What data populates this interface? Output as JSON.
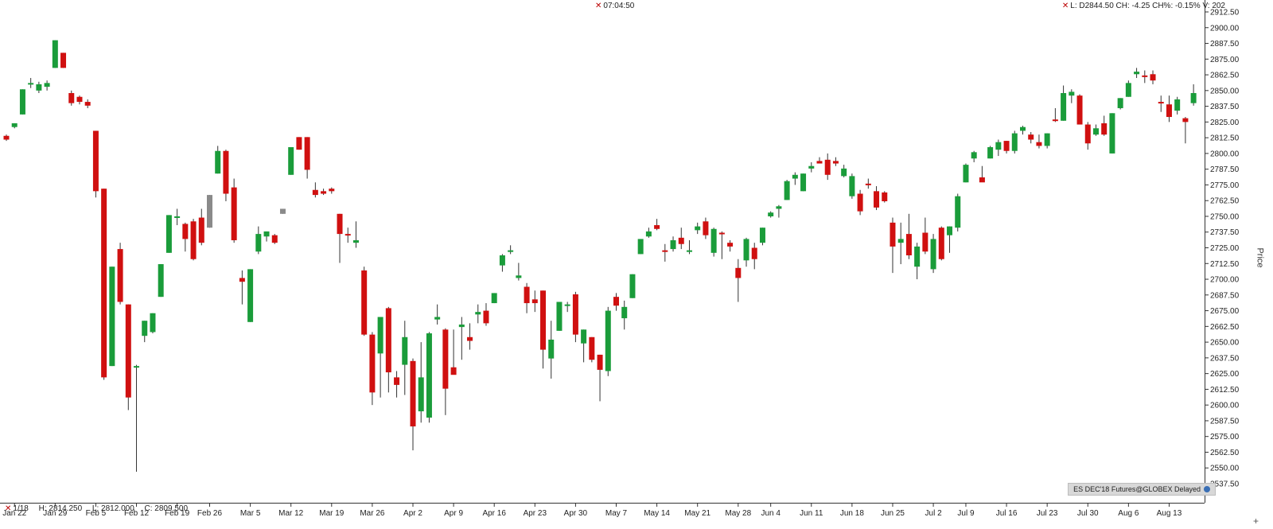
{
  "header": {
    "time": "07:04:50",
    "quote": "L: D2844.50 CH: -4.25 CH%: -0.15% V: 202"
  },
  "footer": {
    "date": "1/18",
    "high": "H: 2814.250",
    "low": "L: 2812.000",
    "close": "C: 2809.500"
  },
  "symbol_badge": "ES DEC'18 Futures@GLOBEX Delayed",
  "colors": {
    "up": "#1a9c3a",
    "down": "#d01010",
    "neutral": "#8a8a8a",
    "wick": "#333333",
    "grid": "#e6e6e6"
  },
  "chart_data": {
    "type": "candlestick",
    "ylabel": "Price",
    "ylim": [
      2530,
      2915
    ],
    "yticks": [
      2537.5,
      2550,
      2562.5,
      2575,
      2587.5,
      2600,
      2612.5,
      2625,
      2637.5,
      2650,
      2662.5,
      2675,
      2687.5,
      2700,
      2712.5,
      2725,
      2737.5,
      2750,
      2762.5,
      2775,
      2787.5,
      2800,
      2812.5,
      2825,
      2837.5,
      2850,
      2862.5,
      2875,
      2887.5,
      2900,
      2912.5
    ],
    "ytick_labels": [
      "2537.50",
      "2550.00",
      "2562.50",
      "2575.00",
      "2587.50",
      "2600.00",
      "2612.50",
      "2625.00",
      "2637.50",
      "2650.00",
      "2662.50",
      "2675.00",
      "2687.50",
      "2700.00",
      "2712.50",
      "2725.00",
      "2737.50",
      "2750.00",
      "2762.50",
      "2775.00",
      "2787.50",
      "2800.00",
      "2812.50",
      "2825.00",
      "2837.50",
      "2850.00",
      "2862.50",
      "2875.00",
      "2887.50",
      "2900.00",
      "2912.50"
    ],
    "x_labels": [
      {
        "i": 1,
        "label": "Jan 22"
      },
      {
        "i": 6,
        "label": "Jan 29"
      },
      {
        "i": 11,
        "label": "Feb 5"
      },
      {
        "i": 16,
        "label": "Feb 12"
      },
      {
        "i": 21,
        "label": "Feb 19"
      },
      {
        "i": 25,
        "label": "Feb 26"
      },
      {
        "i": 30,
        "label": "Mar 5"
      },
      {
        "i": 35,
        "label": "Mar 12"
      },
      {
        "i": 40,
        "label": "Mar 19"
      },
      {
        "i": 45,
        "label": "Mar 26"
      },
      {
        "i": 50,
        "label": "Apr 2"
      },
      {
        "i": 55,
        "label": "Apr 9"
      },
      {
        "i": 60,
        "label": "Apr 16"
      },
      {
        "i": 65,
        "label": "Apr 23"
      },
      {
        "i": 70,
        "label": "Apr 30"
      },
      {
        "i": 75,
        "label": "May 7"
      },
      {
        "i": 80,
        "label": "May 14"
      },
      {
        "i": 85,
        "label": "May 21"
      },
      {
        "i": 90,
        "label": "May 28"
      },
      {
        "i": 94,
        "label": "Jun 4"
      },
      {
        "i": 99,
        "label": "Jun 11"
      },
      {
        "i": 104,
        "label": "Jun 18"
      },
      {
        "i": 109,
        "label": "Jun 25"
      },
      {
        "i": 114,
        "label": "Jul 2"
      },
      {
        "i": 118,
        "label": "Jul 9"
      },
      {
        "i": 123,
        "label": "Jul 16"
      },
      {
        "i": 128,
        "label": "Jul 23"
      },
      {
        "i": 133,
        "label": "Jul 30"
      },
      {
        "i": 138,
        "label": "Aug 6"
      },
      {
        "i": 143,
        "label": "Aug 13"
      }
    ],
    "candles": [
      {
        "i": 0,
        "o": 2814,
        "h": 2815,
        "l": 2810,
        "c": 2811
      },
      {
        "i": 1,
        "o": 2821,
        "h": 2824,
        "l": 2820,
        "c": 2824
      },
      {
        "i": 2,
        "o": 2831,
        "h": 2851,
        "l": 2831,
        "c": 2851
      },
      {
        "i": 3,
        "o": 2856,
        "h": 2860,
        "l": 2852,
        "c": 2856
      },
      {
        "i": 4,
        "o": 2850,
        "h": 2857,
        "l": 2848,
        "c": 2855
      },
      {
        "i": 5,
        "o": 2853,
        "h": 2858,
        "l": 2850,
        "c": 2856
      },
      {
        "i": 6,
        "o": 2868,
        "h": 2890,
        "l": 2868,
        "c": 2890
      },
      {
        "i": 7,
        "o": 2880,
        "h": 2880,
        "l": 2868,
        "c": 2868
      },
      {
        "i": 8,
        "o": 2848,
        "h": 2850,
        "l": 2838,
        "c": 2840
      },
      {
        "i": 9,
        "o": 2845,
        "h": 2846,
        "l": 2839,
        "c": 2841
      },
      {
        "i": 10,
        "o": 2841,
        "h": 2843,
        "l": 2836,
        "c": 2838
      },
      {
        "i": 11,
        "o": 2818,
        "h": 2818,
        "l": 2765,
        "c": 2770
      },
      {
        "i": 12,
        "o": 2772,
        "h": 2772,
        "l": 2620,
        "c": 2622
      },
      {
        "i": 13,
        "o": 2631,
        "h": 2710,
        "l": 2631,
        "c": 2710
      },
      {
        "i": 14,
        "o": 2724,
        "h": 2729,
        "l": 2680,
        "c": 2682
      },
      {
        "i": 15,
        "o": 2680,
        "h": 2680,
        "l": 2596,
        "c": 2606
      },
      {
        "i": 16,
        "o": 2631,
        "h": 2632,
        "l": 2547,
        "c": 2631
      },
      {
        "i": 17,
        "o": 2655,
        "h": 2667,
        "l": 2650,
        "c": 2667
      },
      {
        "i": 18,
        "o": 2658,
        "h": 2673,
        "l": 2657,
        "c": 2673
      },
      {
        "i": 19,
        "o": 2686,
        "h": 2712,
        "l": 2686,
        "c": 2712
      },
      {
        "i": 20,
        "o": 2721,
        "h": 2751,
        "l": 2721,
        "c": 2751
      },
      {
        "i": 21,
        "o": 2750,
        "h": 2756,
        "l": 2743,
        "c": 2750
      },
      {
        "i": 22,
        "o": 2744,
        "h": 2745,
        "l": 2722,
        "c": 2732
      },
      {
        "i": 23,
        "o": 2746,
        "h": 2748,
        "l": 2715,
        "c": 2716
      },
      {
        "i": 24,
        "o": 2749,
        "h": 2756,
        "l": 2727,
        "c": 2729
      },
      {
        "i": 25,
        "o": 2741,
        "h": 2767,
        "l": 2741,
        "c": 2767,
        "n": true
      },
      {
        "i": 26,
        "o": 2784,
        "h": 2806,
        "l": 2784,
        "c": 2802
      },
      {
        "i": 27,
        "o": 2802,
        "h": 2803,
        "l": 2762,
        "c": 2768
      },
      {
        "i": 28,
        "o": 2773,
        "h": 2780,
        "l": 2729,
        "c": 2731
      },
      {
        "i": 29,
        "o": 2701,
        "h": 2707,
        "l": 2680,
        "c": 2698
      },
      {
        "i": 30,
        "o": 2666,
        "h": 2708,
        "l": 2666,
        "c": 2708
      },
      {
        "i": 31,
        "o": 2722,
        "h": 2742,
        "l": 2720,
        "c": 2736
      },
      {
        "i": 32,
        "o": 2734,
        "h": 2738,
        "l": 2730,
        "c": 2738
      },
      {
        "i": 33,
        "o": 2735,
        "h": 2736,
        "l": 2728,
        "c": 2729
      },
      {
        "i": 34,
        "o": 2752,
        "h": 2756,
        "l": 2752,
        "c": 2756,
        "n": true
      },
      {
        "i": 35,
        "o": 2783,
        "h": 2805,
        "l": 2783,
        "c": 2805
      },
      {
        "i": 36,
        "o": 2813,
        "h": 2813,
        "l": 2803,
        "c": 2803
      },
      {
        "i": 37,
        "o": 2813,
        "h": 2813,
        "l": 2780,
        "c": 2787
      },
      {
        "i": 38,
        "o": 2771,
        "h": 2777,
        "l": 2765,
        "c": 2767
      },
      {
        "i": 39,
        "o": 2770,
        "h": 2772,
        "l": 2767,
        "c": 2768
      },
      {
        "i": 40,
        "o": 2772,
        "h": 2773,
        "l": 2768,
        "c": 2770
      },
      {
        "i": 41,
        "o": 2752,
        "h": 2752,
        "l": 2713,
        "c": 2736
      },
      {
        "i": 42,
        "o": 2736,
        "h": 2741,
        "l": 2729,
        "c": 2735
      },
      {
        "i": 43,
        "o": 2729,
        "h": 2746,
        "l": 2725,
        "c": 2731
      },
      {
        "i": 44,
        "o": 2707,
        "h": 2710,
        "l": 2655,
        "c": 2656
      },
      {
        "i": 45,
        "o": 2656,
        "h": 2658,
        "l": 2600,
        "c": 2610
      },
      {
        "i": 46,
        "o": 2641,
        "h": 2670,
        "l": 2606,
        "c": 2670
      },
      {
        "i": 47,
        "o": 2677,
        "h": 2678,
        "l": 2610,
        "c": 2626
      },
      {
        "i": 48,
        "o": 2622,
        "h": 2627,
        "l": 2606,
        "c": 2616
      },
      {
        "i": 49,
        "o": 2632,
        "h": 2667,
        "l": 2608,
        "c": 2654
      },
      {
        "i": 50,
        "o": 2635,
        "h": 2637,
        "l": 2564,
        "c": 2583
      },
      {
        "i": 51,
        "o": 2595,
        "h": 2650,
        "l": 2586,
        "c": 2622
      },
      {
        "i": 52,
        "o": 2590,
        "h": 2658,
        "l": 2586,
        "c": 2657
      },
      {
        "i": 53,
        "o": 2668,
        "h": 2680,
        "l": 2664,
        "c": 2670
      },
      {
        "i": 54,
        "o": 2660,
        "h": 2661,
        "l": 2592,
        "c": 2613
      },
      {
        "i": 55,
        "o": 2630,
        "h": 2660,
        "l": 2626,
        "c": 2624
      },
      {
        "i": 56,
        "o": 2662,
        "h": 2670,
        "l": 2636,
        "c": 2664
      },
      {
        "i": 57,
        "o": 2654,
        "h": 2665,
        "l": 2644,
        "c": 2651
      },
      {
        "i": 58,
        "o": 2672,
        "h": 2680,
        "l": 2665,
        "c": 2674
      },
      {
        "i": 59,
        "o": 2675,
        "h": 2681,
        "l": 2663,
        "c": 2665
      },
      {
        "i": 60,
        "o": 2681,
        "h": 2689,
        "l": 2681,
        "c": 2689
      },
      {
        "i": 61,
        "o": 2711,
        "h": 2720,
        "l": 2706,
        "c": 2719
      },
      {
        "i": 62,
        "o": 2723,
        "h": 2727,
        "l": 2720,
        "c": 2723
      },
      {
        "i": 63,
        "o": 2701,
        "h": 2713,
        "l": 2699,
        "c": 2703
      },
      {
        "i": 64,
        "o": 2694,
        "h": 2697,
        "l": 2673,
        "c": 2681
      },
      {
        "i": 65,
        "o": 2684,
        "h": 2691,
        "l": 2674,
        "c": 2681
      },
      {
        "i": 66,
        "o": 2691,
        "h": 2691,
        "l": 2629,
        "c": 2644
      },
      {
        "i": 67,
        "o": 2637,
        "h": 2667,
        "l": 2621,
        "c": 2652
      },
      {
        "i": 68,
        "o": 2659,
        "h": 2682,
        "l": 2659,
        "c": 2682
      },
      {
        "i": 69,
        "o": 2679,
        "h": 2682,
        "l": 2674,
        "c": 2680
      },
      {
        "i": 70,
        "o": 2688,
        "h": 2690,
        "l": 2650,
        "c": 2656
      },
      {
        "i": 71,
        "o": 2649,
        "h": 2660,
        "l": 2634,
        "c": 2660
      },
      {
        "i": 72,
        "o": 2654,
        "h": 2654,
        "l": 2634,
        "c": 2636
      },
      {
        "i": 73,
        "o": 2640,
        "h": 2640,
        "l": 2603,
        "c": 2628
      },
      {
        "i": 74,
        "o": 2627,
        "h": 2678,
        "l": 2623,
        "c": 2675
      },
      {
        "i": 75,
        "o": 2686,
        "h": 2689,
        "l": 2675,
        "c": 2679
      },
      {
        "i": 76,
        "o": 2669,
        "h": 2683,
        "l": 2660,
        "c": 2678
      },
      {
        "i": 77,
        "o": 2685,
        "h": 2704,
        "l": 2685,
        "c": 2704
      },
      {
        "i": 78,
        "o": 2720,
        "h": 2730,
        "l": 2720,
        "c": 2732
      },
      {
        "i": 79,
        "o": 2734,
        "h": 2741,
        "l": 2733,
        "c": 2738
      },
      {
        "i": 80,
        "o": 2743,
        "h": 2748,
        "l": 2739,
        "c": 2740
      },
      {
        "i": 81,
        "o": 2723,
        "h": 2728,
        "l": 2714,
        "c": 2722
      },
      {
        "i": 82,
        "o": 2724,
        "h": 2734,
        "l": 2722,
        "c": 2731
      },
      {
        "i": 83,
        "o": 2733,
        "h": 2741,
        "l": 2724,
        "c": 2728
      },
      {
        "i": 84,
        "o": 2722,
        "h": 2731,
        "l": 2720,
        "c": 2723
      },
      {
        "i": 85,
        "o": 2739,
        "h": 2745,
        "l": 2736,
        "c": 2742
      },
      {
        "i": 86,
        "o": 2746,
        "h": 2749,
        "l": 2732,
        "c": 2735
      },
      {
        "i": 87,
        "o": 2721,
        "h": 2741,
        "l": 2718,
        "c": 2740
      },
      {
        "i": 88,
        "o": 2737,
        "h": 2738,
        "l": 2716,
        "c": 2736
      },
      {
        "i": 89,
        "o": 2729,
        "h": 2731,
        "l": 2722,
        "c": 2726
      },
      {
        "i": 90,
        "o": 2709,
        "h": 2716,
        "l": 2682,
        "c": 2701
      },
      {
        "i": 91,
        "o": 2715,
        "h": 2733,
        "l": 2710,
        "c": 2732
      },
      {
        "i": 92,
        "o": 2725,
        "h": 2729,
        "l": 2708,
        "c": 2716
      },
      {
        "i": 93,
        "o": 2729,
        "h": 2741,
        "l": 2727,
        "c": 2741
      },
      {
        "i": 94,
        "o": 2750,
        "h": 2754,
        "l": 2749,
        "c": 2753
      },
      {
        "i": 95,
        "o": 2756,
        "h": 2759,
        "l": 2749,
        "c": 2758
      },
      {
        "i": 96,
        "o": 2763,
        "h": 2779,
        "l": 2763,
        "c": 2778
      },
      {
        "i": 97,
        "o": 2780,
        "h": 2785,
        "l": 2775,
        "c": 2783
      },
      {
        "i": 98,
        "o": 2770,
        "h": 2784,
        "l": 2770,
        "c": 2784
      },
      {
        "i": 99,
        "o": 2788,
        "h": 2793,
        "l": 2785,
        "c": 2790
      },
      {
        "i": 100,
        "o": 2794,
        "h": 2797,
        "l": 2792,
        "c": 2792
      },
      {
        "i": 101,
        "o": 2795,
        "h": 2800,
        "l": 2779,
        "c": 2783
      },
      {
        "i": 102,
        "o": 2794,
        "h": 2797,
        "l": 2790,
        "c": 2792
      },
      {
        "i": 103,
        "o": 2782,
        "h": 2791,
        "l": 2781,
        "c": 2788
      },
      {
        "i": 104,
        "o": 2766,
        "h": 2784,
        "l": 2764,
        "c": 2782
      },
      {
        "i": 105,
        "o": 2768,
        "h": 2771,
        "l": 2751,
        "c": 2754
      },
      {
        "i": 106,
        "o": 2776,
        "h": 2780,
        "l": 2772,
        "c": 2775
      },
      {
        "i": 107,
        "o": 2770,
        "h": 2774,
        "l": 2755,
        "c": 2757
      },
      {
        "i": 108,
        "o": 2769,
        "h": 2770,
        "l": 2761,
        "c": 2762
      },
      {
        "i": 109,
        "o": 2745,
        "h": 2749,
        "l": 2705,
        "c": 2726
      },
      {
        "i": 110,
        "o": 2729,
        "h": 2745,
        "l": 2712,
        "c": 2732
      },
      {
        "i": 111,
        "o": 2736,
        "h": 2752,
        "l": 2716,
        "c": 2719
      },
      {
        "i": 112,
        "o": 2710,
        "h": 2729,
        "l": 2700,
        "c": 2726
      },
      {
        "i": 113,
        "o": 2737,
        "h": 2749,
        "l": 2720,
        "c": 2722
      },
      {
        "i": 114,
        "o": 2708,
        "h": 2736,
        "l": 2705,
        "c": 2732
      },
      {
        "i": 115,
        "o": 2741,
        "h": 2742,
        "l": 2715,
        "c": 2716
      },
      {
        "i": 116,
        "o": 2735,
        "h": 2742,
        "l": 2721,
        "c": 2742
      },
      {
        "i": 117,
        "o": 2741,
        "h": 2768,
        "l": 2738,
        "c": 2766
      },
      {
        "i": 118,
        "o": 2777,
        "h": 2792,
        "l": 2777,
        "c": 2791
      },
      {
        "i": 119,
        "o": 2796,
        "h": 2802,
        "l": 2793,
        "c": 2801
      },
      {
        "i": 120,
        "o": 2781,
        "h": 2790,
        "l": 2778,
        "c": 2777
      },
      {
        "i": 121,
        "o": 2796,
        "h": 2806,
        "l": 2796,
        "c": 2805
      },
      {
        "i": 122,
        "o": 2803,
        "h": 2811,
        "l": 2798,
        "c": 2809
      },
      {
        "i": 123,
        "o": 2810,
        "h": 2810,
        "l": 2800,
        "c": 2802
      },
      {
        "i": 124,
        "o": 2802,
        "h": 2818,
        "l": 2800,
        "c": 2816
      },
      {
        "i": 125,
        "o": 2818,
        "h": 2822,
        "l": 2815,
        "c": 2821
      },
      {
        "i": 126,
        "o": 2815,
        "h": 2817,
        "l": 2808,
        "c": 2811
      },
      {
        "i": 127,
        "o": 2809,
        "h": 2815,
        "l": 2804,
        "c": 2806
      },
      {
        "i": 128,
        "o": 2806,
        "h": 2816,
        "l": 2804,
        "c": 2816
      },
      {
        "i": 129,
        "o": 2827,
        "h": 2836,
        "l": 2825,
        "c": 2826
      },
      {
        "i": 130,
        "o": 2826,
        "h": 2854,
        "l": 2826,
        "c": 2848
      },
      {
        "i": 131,
        "o": 2846,
        "h": 2851,
        "l": 2840,
        "c": 2849
      },
      {
        "i": 132,
        "o": 2846,
        "h": 2847,
        "l": 2823,
        "c": 2823
      },
      {
        "i": 133,
        "o": 2823,
        "h": 2825,
        "l": 2803,
        "c": 2808
      },
      {
        "i": 134,
        "o": 2815,
        "h": 2823,
        "l": 2814,
        "c": 2820
      },
      {
        "i": 135,
        "o": 2824,
        "h": 2830,
        "l": 2814,
        "c": 2815
      },
      {
        "i": 136,
        "o": 2800,
        "h": 2832,
        "l": 2800,
        "c": 2832
      },
      {
        "i": 137,
        "o": 2836,
        "h": 2844,
        "l": 2835,
        "c": 2844
      },
      {
        "i": 138,
        "o": 2845,
        "h": 2858,
        "l": 2845,
        "c": 2856
      },
      {
        "i": 139,
        "o": 2863,
        "h": 2868,
        "l": 2860,
        "c": 2865
      },
      {
        "i": 140,
        "o": 2862,
        "h": 2866,
        "l": 2856,
        "c": 2861
      },
      {
        "i": 141,
        "o": 2863,
        "h": 2866,
        "l": 2855,
        "c": 2858
      },
      {
        "i": 142,
        "o": 2841,
        "h": 2846,
        "l": 2833,
        "c": 2840
      },
      {
        "i": 143,
        "o": 2839,
        "h": 2846,
        "l": 2825,
        "c": 2829
      },
      {
        "i": 144,
        "o": 2834,
        "h": 2845,
        "l": 2831,
        "c": 2843
      },
      {
        "i": 145,
        "o": 2828,
        "h": 2829,
        "l": 2808,
        "c": 2825
      },
      {
        "i": 146,
        "o": 2840,
        "h": 2855,
        "l": 2838,
        "c": 2848
      }
    ]
  }
}
